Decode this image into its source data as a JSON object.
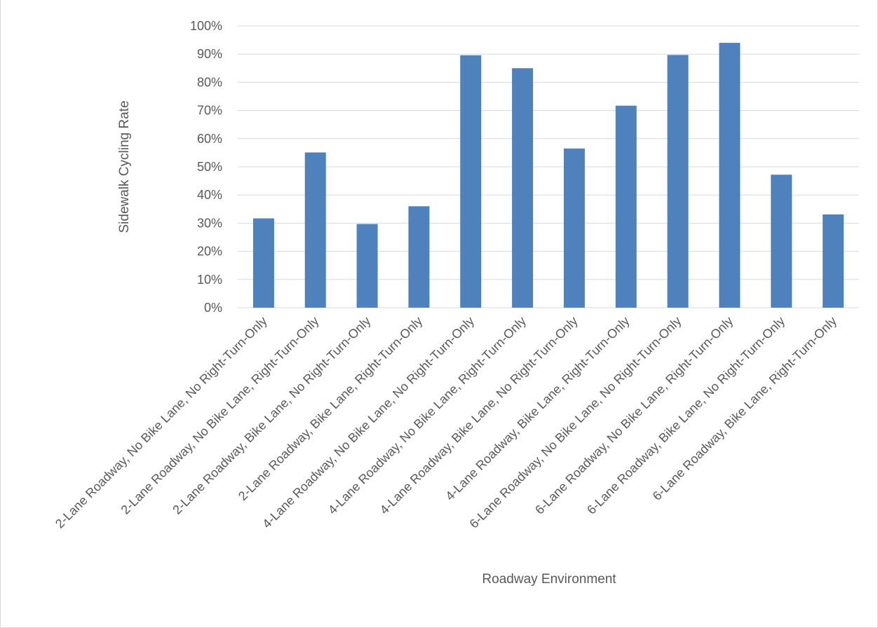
{
  "chart_data": {
    "type": "bar",
    "title": "",
    "xlabel": "Roadway Environment",
    "ylabel": "Sidewalk Cycling Rate",
    "ylim": [
      0,
      1
    ],
    "ytick_step": 0.1,
    "ytick_labels": [
      "0%",
      "10%",
      "20%",
      "30%",
      "40%",
      "50%",
      "60%",
      "70%",
      "80%",
      "90%",
      "100%"
    ],
    "grid": true,
    "legend": "none",
    "categories": [
      "2-Lane Roadway, No Bike Lane, No Right-Turn-Only",
      "2-Lane Roadway, No Bike Lane, Right-Turn-Only",
      "2-Lane Roadway, Bike Lane, No Right-Turn-Only",
      "2-Lane Roadway, Bike Lane, Right-Turn-Only",
      "4-Lane Roadway, No Bike Lane, No Right-Turn-Only",
      "4-Lane Roadway, No Bike Lane, Right-Turn-Only",
      "4-Lane Roadway, Bike Lane, No Right-Turn-Only",
      "4-Lane Roadway, Bike Lane, Right-Turn-Only",
      "6-Lane Roadway, No Bike Lane, No Right-Turn-Only",
      "6-Lane Roadway, No Bike Lane, Right-Turn-Only",
      "6-Lane Roadway, Bike Lane, No Right-Turn-Only",
      "6-Lane Roadway, Bike Lane, Right-Turn-Only"
    ],
    "values": [
      0.317,
      0.551,
      0.297,
      0.36,
      0.896,
      0.85,
      0.565,
      0.717,
      0.897,
      0.94,
      0.472,
      0.331
    ],
    "colors": {
      "bar": "#4F81BD",
      "grid": "#d9d9d9",
      "text": "#595959"
    }
  }
}
